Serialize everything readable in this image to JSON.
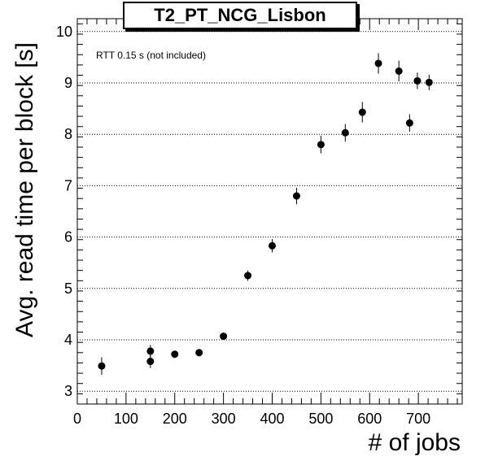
{
  "chart_data": {
    "type": "scatter",
    "title": "T2_PT_NCG_Lisbon",
    "xlabel": "# of jobs",
    "ylabel": "Avg. read time per block [s]",
    "annotation": "RTT 0.15 s (not included)",
    "xlim": [
      0,
      790
    ],
    "ylim": [
      2.75,
      10.25
    ],
    "x_ticks": [
      0,
      100,
      200,
      300,
      400,
      500,
      600,
      700
    ],
    "y_ticks": [
      3,
      4,
      5,
      6,
      7,
      8,
      9,
      10
    ],
    "grid": "horizontal dotted",
    "marker_color": "#000000",
    "points": [
      {
        "x": 50,
        "y": 3.49,
        "err": 0.17
      },
      {
        "x": 150,
        "y": 3.58,
        "err": 0.13
      },
      {
        "x": 150,
        "y": 3.78,
        "err": 0.12
      },
      {
        "x": 200,
        "y": 3.72,
        "err": 0.07
      },
      {
        "x": 250,
        "y": 3.75,
        "err": 0.07
      },
      {
        "x": 300,
        "y": 4.07,
        "err": 0.06
      },
      {
        "x": 350,
        "y": 5.25,
        "err": 0.1
      },
      {
        "x": 400,
        "y": 5.83,
        "err": 0.13
      },
      {
        "x": 450,
        "y": 6.8,
        "err": 0.16
      },
      {
        "x": 500,
        "y": 7.8,
        "err": 0.17
      },
      {
        "x": 550,
        "y": 8.03,
        "err": 0.17
      },
      {
        "x": 585,
        "y": 8.43,
        "err": 0.2
      },
      {
        "x": 618,
        "y": 9.38,
        "err": 0.2
      },
      {
        "x": 660,
        "y": 9.23,
        "err": 0.2
      },
      {
        "x": 682,
        "y": 8.22,
        "err": 0.17
      },
      {
        "x": 698,
        "y": 9.04,
        "err": 0.16
      },
      {
        "x": 722,
        "y": 9.01,
        "err": 0.15
      }
    ]
  }
}
